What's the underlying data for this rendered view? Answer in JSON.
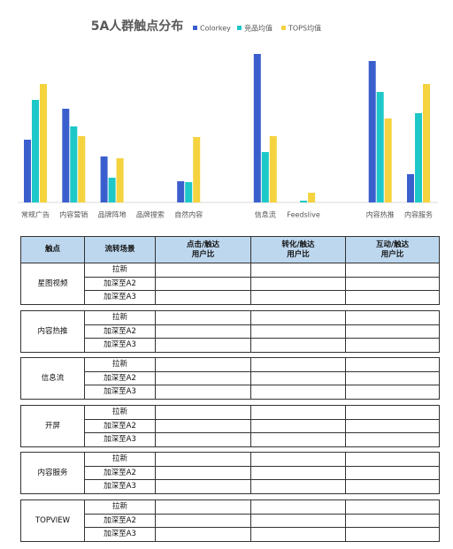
{
  "chart_data": {
    "type": "bar",
    "title": "5A人群触点分布",
    "categories": [
      "常规广告",
      "内容营销",
      "品牌阵地",
      "品牌搜索",
      "自然内容",
      null,
      "信息流",
      "Feedslive",
      null,
      "内容热推",
      "内容服务"
    ],
    "ylim": [
      0,
      170
    ],
    "series": [
      {
        "name": "Colorkey",
        "color": "#3a5fcd",
        "values": [
          71,
          106,
          52,
          0,
          24,
          0,
          168,
          0,
          0,
          160,
          32
        ]
      },
      {
        "name": "竞品均值",
        "color": "#1ec8c8",
        "values": [
          116,
          86,
          28,
          0,
          23,
          0,
          57,
          2,
          0,
          125,
          101
        ]
      },
      {
        "name": "TOPS均值",
        "color": "#f5d33f",
        "values": [
          134,
          75,
          50,
          0,
          74,
          0,
          75,
          11,
          0,
          95,
          134
        ]
      }
    ]
  },
  "table": {
    "header": [
      "触点",
      "流转场景",
      "点击/触达\n用户比",
      "转化/触达\n用户比",
      "互动/触达\n用户比"
    ],
    "groups": [
      {
        "name": "星图视频",
        "rows": [
          "拉新",
          "加深至A2",
          "加深至A3"
        ]
      },
      {
        "name": "内容热推",
        "rows": [
          "拉新",
          "加深至A2",
          "加深至A3"
        ]
      },
      {
        "name": "信息流",
        "rows": [
          "拉新",
          "加深至A2",
          "加深至A3"
        ]
      },
      {
        "name": "开屏",
        "rows": [
          "拉新",
          "加深至A2",
          "加深至A3"
        ]
      },
      {
        "name": "内容服务",
        "rows": [
          "拉新",
          "加深至A2",
          "加深至A3"
        ]
      },
      {
        "name": "TOPVIEW",
        "rows": [
          "拉新",
          "加深至A2",
          "加深至A3"
        ]
      }
    ]
  }
}
